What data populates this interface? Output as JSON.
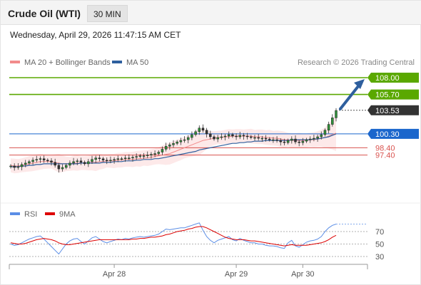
{
  "header": {
    "instrument": "Crude Oil (WTI)",
    "timeframe": "30 MIN",
    "datetime": "Wednesday, April 29, 2026 11:47:15 AM CET"
  },
  "chart_data": {
    "type": "candlestick",
    "price_panel": {
      "legend": [
        {
          "name": "MA 20 + Bollinger Bands",
          "color": "#f28b8b"
        },
        {
          "name": "MA 50",
          "color": "#2e5f9e"
        }
      ],
      "credit": "Research © 2026 Trading Central",
      "levels": [
        {
          "value": 108.0,
          "label": "108.00",
          "type": "resistance",
          "color": "#5aa800"
        },
        {
          "value": 105.7,
          "label": "105.70",
          "type": "resistance",
          "color": "#5aa800"
        },
        {
          "value": 103.53,
          "label": "103.53",
          "type": "current-price",
          "color": "#333333"
        },
        {
          "value": 100.3,
          "label": "100.30",
          "type": "pivot",
          "color": "#1a66cc"
        },
        {
          "value": 98.4,
          "label": "98.40",
          "type": "support",
          "color": "#d9534f"
        },
        {
          "value": 97.4,
          "label": "97.40",
          "type": "support",
          "color": "#d9534f"
        }
      ],
      "forecast_arrow": {
        "from": 103.53,
        "to": 108.0,
        "color": "#2e5f9e"
      },
      "closes": [
        95.9,
        95.7,
        95.8,
        96.1,
        96.3,
        96.5,
        96.7,
        96.8,
        96.9,
        96.7,
        96.6,
        96.4,
        96.0,
        95.5,
        95.7,
        96.0,
        96.3,
        96.5,
        96.6,
        96.4,
        96.2,
        96.5,
        96.8,
        97.0,
        96.9,
        96.7,
        96.6,
        96.7,
        96.8,
        96.9,
        96.9,
        97.0,
        97.0,
        97.1,
        97.2,
        97.3,
        97.3,
        97.4,
        97.5,
        97.6,
        97.8,
        98.2,
        98.6,
        98.8,
        99.0,
        99.2,
        99.4,
        99.5,
        99.8,
        100.2,
        100.6,
        101.1,
        100.8,
        100.3,
        99.9,
        99.6,
        99.8,
        99.9,
        100.0,
        100.2,
        100.0,
        99.9,
        100.1,
        100.0,
        99.9,
        99.8,
        99.8,
        99.7,
        99.7,
        99.6,
        99.5,
        99.5,
        99.4,
        99.2,
        99.1,
        99.4,
        99.6,
        99.2,
        99.1,
        99.3,
        99.5,
        99.6,
        99.7,
        99.9,
        100.2,
        100.8,
        101.6,
        102.5,
        103.5
      ],
      "ma20": [
        96.0,
        95.9,
        95.9,
        96.0,
        96.1,
        96.2,
        96.3,
        96.4,
        96.5,
        96.5,
        96.5,
        96.5,
        96.4,
        96.3,
        96.2,
        96.2,
        96.2,
        96.3,
        96.3,
        96.3,
        96.3,
        96.3,
        96.4,
        96.4,
        96.5,
        96.5,
        96.6,
        96.6,
        96.6,
        96.7,
        96.7,
        96.8,
        96.8,
        96.8,
        96.9,
        96.9,
        97.0,
        97.0,
        97.1,
        97.2,
        97.3,
        97.4,
        97.5,
        97.6,
        97.8,
        98.0,
        98.2,
        98.4,
        98.6,
        98.8,
        99.0,
        99.2,
        99.4,
        99.5,
        99.6,
        99.7,
        99.8,
        99.8,
        99.9,
        99.9,
        100.0,
        100.0,
        100.0,
        100.0,
        100.0,
        100.0,
        99.9,
        99.9,
        99.9,
        99.8,
        99.8,
        99.7,
        99.7,
        99.6,
        99.5,
        99.5,
        99.4,
        99.4,
        99.4,
        99.4,
        99.4,
        99.5,
        99.5,
        99.6,
        99.7,
        99.8,
        100.0,
        100.2,
        100.4
      ],
      "ma50": [
        95.8,
        95.8,
        95.8,
        95.9,
        95.9,
        96.0,
        96.0,
        96.1,
        96.1,
        96.2,
        96.2,
        96.2,
        96.2,
        96.2,
        96.2,
        96.2,
        96.2,
        96.2,
        96.2,
        96.3,
        96.3,
        96.3,
        96.3,
        96.3,
        96.3,
        96.4,
        96.4,
        96.4,
        96.5,
        96.5,
        96.5,
        96.6,
        96.6,
        96.6,
        96.7,
        96.7,
        96.8,
        96.8,
        96.8,
        96.9,
        96.9,
        97.0,
        97.1,
        97.2,
        97.3,
        97.4,
        97.5,
        97.6,
        97.7,
        97.8,
        97.9,
        98.1,
        98.2,
        98.3,
        98.4,
        98.5,
        98.6,
        98.7,
        98.8,
        98.9,
        99.0,
        99.0,
        99.1,
        99.1,
        99.2,
        99.2,
        99.3,
        99.3,
        99.3,
        99.4,
        99.4,
        99.4,
        99.4,
        99.4,
        99.4,
        99.4,
        99.5,
        99.5,
        99.5,
        99.5,
        99.5,
        99.5,
        99.6,
        99.6,
        99.7,
        99.8,
        99.9,
        100.1,
        100.3
      ]
    },
    "rsi_panel": {
      "legend": [
        {
          "name": "RSI",
          "color": "#5b8ee6"
        },
        {
          "name": "9MA",
          "color": "#dd0000"
        }
      ],
      "yticks": [
        70,
        50,
        30
      ],
      "rsi": [
        50,
        48,
        49,
        52,
        55,
        58,
        60,
        62,
        63,
        58,
        52,
        46,
        40,
        34,
        42,
        50,
        55,
        58,
        59,
        54,
        50,
        55,
        60,
        62,
        58,
        54,
        52,
        54,
        56,
        58,
        57,
        59,
        58,
        60,
        61,
        62,
        61,
        62,
        63,
        64,
        66,
        70,
        74,
        73,
        74,
        75,
        76,
        76,
        78,
        80,
        82,
        84,
        72,
        62,
        56,
        52,
        56,
        58,
        60,
        62,
        57,
        55,
        59,
        56,
        54,
        52,
        52,
        50,
        50,
        48,
        47,
        47,
        46,
        44,
        43,
        52,
        56,
        47,
        45,
        49,
        53,
        55,
        56,
        58,
        62,
        70,
        76,
        80,
        82
      ],
      "ma9": [
        52,
        51,
        50,
        50,
        51,
        53,
        55,
        57,
        58,
        59,
        58,
        57,
        55,
        52,
        50,
        49,
        49,
        50,
        51,
        52,
        53,
        54,
        55,
        56,
        57,
        57,
        57,
        57,
        57,
        57,
        57,
        57,
        57,
        58,
        58,
        59,
        59,
        60,
        61,
        61,
        62,
        63,
        65,
        66,
        68,
        70,
        71,
        72,
        74,
        75,
        77,
        78,
        78,
        76,
        73,
        70,
        67,
        64,
        61,
        59,
        58,
        57,
        57,
        57,
        56,
        55,
        55,
        54,
        53,
        52,
        51,
        50,
        49,
        48,
        47,
        48,
        49,
        48,
        48,
        48,
        48,
        49,
        50,
        51,
        52,
        54,
        57,
        61,
        64
      ]
    },
    "x_axis": {
      "tick_labels": [
        {
          "label": "Apr 28",
          "index": 28
        },
        {
          "label": "Apr 29",
          "index": 61
        },
        {
          "label": "Apr 30",
          "index": 79
        }
      ]
    }
  }
}
